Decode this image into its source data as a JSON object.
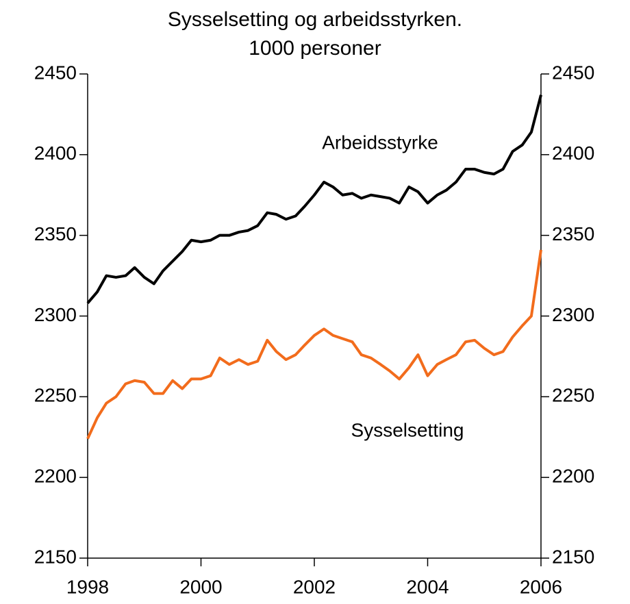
{
  "chart_data": {
    "type": "line",
    "title": "Sysselsetting og arbeidsstyrken.",
    "subtitle": "1000 personer",
    "annotations": [
      "Arbeidsstyrke",
      "Sysselsetting"
    ],
    "x": [
      1998,
      1998.17,
      1998.33,
      1998.5,
      1998.67,
      1998.83,
      1999,
      1999.17,
      1999.33,
      1999.5,
      1999.67,
      1999.83,
      2000,
      2000.17,
      2000.33,
      2000.5,
      2000.67,
      2000.83,
      2001,
      2001.17,
      2001.33,
      2001.5,
      2001.67,
      2001.83,
      2002,
      2002.17,
      2002.33,
      2002.5,
      2002.67,
      2002.83,
      2003,
      2003.17,
      2003.33,
      2003.5,
      2003.67,
      2003.83,
      2004,
      2004.17,
      2004.33,
      2004.5,
      2004.67,
      2004.83,
      2005,
      2005.17,
      2005.33,
      2005.5,
      2005.67,
      2005.83,
      2006
    ],
    "series": [
      {
        "name": "Arbeidsstyrke",
        "color": "#000000",
        "values": [
          2308,
          2315,
          2325,
          2324,
          2325,
          2330,
          2324,
          2320,
          2328,
          2334,
          2340,
          2347,
          2346,
          2347,
          2350,
          2350,
          2352,
          2353,
          2356,
          2364,
          2363,
          2360,
          2362,
          2368,
          2375,
          2383,
          2380,
          2375,
          2376,
          2373,
          2375,
          2374,
          2373,
          2370,
          2380,
          2377,
          2370,
          2375,
          2378,
          2383,
          2391,
          2391,
          2389,
          2388,
          2391,
          2402,
          2406,
          2414,
          2437
        ]
      },
      {
        "name": "Sysselsetting",
        "color": "#f26c1c",
        "values": [
          2224,
          2237,
          2246,
          2250,
          2258,
          2260,
          2259,
          2252,
          2252,
          2260,
          2255,
          2261,
          2261,
          2263,
          2274,
          2270,
          2273,
          2270,
          2272,
          2285,
          2278,
          2273,
          2276,
          2282,
          2288,
          2292,
          2288,
          2286,
          2284,
          2276,
          2274,
          2270,
          2266,
          2261,
          2268,
          2276,
          2263,
          2270,
          2273,
          2276,
          2284,
          2285,
          2280,
          2276,
          2278,
          2287,
          2294,
          2300,
          2341
        ]
      }
    ],
    "xlim": [
      1998,
      2006
    ],
    "xticks": [
      1998,
      2000,
      2002,
      2004,
      2006
    ],
    "ylim": [
      2150,
      2450
    ],
    "yticks": [
      2150,
      2200,
      2250,
      2300,
      2350,
      2400,
      2450
    ],
    "y2lim": [
      2150,
      2450
    ],
    "y2ticks": [
      2150,
      2200,
      2250,
      2300,
      2350,
      2400,
      2450
    ],
    "grid": false
  }
}
